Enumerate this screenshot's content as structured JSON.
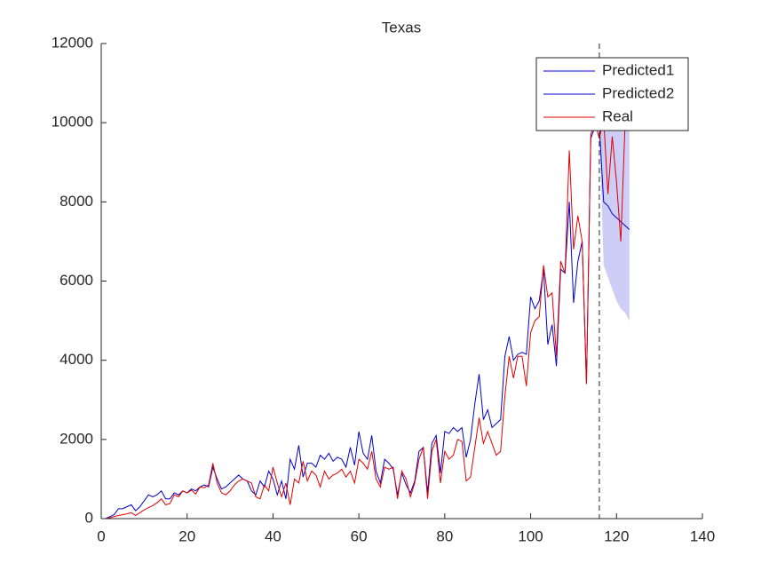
{
  "chart_data": {
    "type": "line",
    "title": "Texas",
    "xlim": [
      0,
      140
    ],
    "xticks": [
      0,
      20,
      40,
      60,
      80,
      100,
      120,
      140
    ],
    "ylim": [
      0,
      12000
    ],
    "yticks": [
      0,
      2000,
      4000,
      6000,
      8000,
      10000,
      12000
    ],
    "legend": "northeast",
    "vline": 116,
    "band": {
      "color": "#c8c8f5",
      "x": [
        116,
        117,
        118,
        119,
        120,
        121,
        122,
        123
      ],
      "lower": [
        9900,
        6400,
        6100,
        5800,
        5500,
        5300,
        5200,
        5000
      ],
      "upper": [
        9900,
        10300,
        10500,
        10700,
        10900,
        11100,
        11300,
        11500
      ]
    },
    "series": [
      {
        "name": "Predicted1",
        "color": "#0000cc",
        "x": [
          1,
          2,
          3,
          4,
          5,
          6,
          7,
          8,
          9,
          10,
          11,
          12,
          13,
          14,
          15,
          16,
          17,
          18,
          19,
          20,
          21,
          22,
          23,
          24,
          25,
          26,
          27,
          28,
          29,
          30,
          31,
          32,
          33,
          34,
          35,
          36,
          37,
          38,
          39,
          40,
          41,
          42,
          43,
          44,
          45,
          46,
          47,
          48,
          49,
          50,
          51,
          52,
          53,
          54,
          55,
          56,
          57,
          58,
          59,
          60,
          61,
          62,
          63,
          64,
          65,
          66,
          67,
          68,
          69,
          70,
          71,
          72,
          73,
          74,
          75,
          76,
          77,
          78,
          79,
          80,
          81,
          82,
          83,
          84,
          85,
          86,
          87,
          88,
          89,
          90,
          91,
          92,
          93,
          94,
          95,
          96,
          97,
          98,
          99,
          100,
          101,
          102,
          103,
          104,
          105,
          106,
          107,
          108,
          109,
          110,
          111,
          112,
          113,
          114,
          115,
          116
        ],
        "values": [
          0,
          50,
          100,
          250,
          250,
          300,
          350,
          200,
          300,
          450,
          600,
          550,
          600,
          700,
          500,
          500,
          650,
          600,
          700,
          650,
          750,
          700,
          800,
          850,
          800,
          1300,
          1000,
          750,
          800,
          900,
          1000,
          1100,
          1000,
          950,
          700,
          600,
          950,
          800,
          1200,
          1000,
          600,
          950,
          500,
          1500,
          1250,
          1850,
          1050,
          1400,
          1400,
          1300,
          1600,
          1500,
          1650,
          1450,
          1550,
          1500,
          1300,
          1800,
          1350,
          2200,
          1650,
          1500,
          2100,
          1200,
          900,
          1500,
          1400,
          1250,
          600,
          1150,
          850,
          650,
          950,
          1700,
          1800,
          650,
          1900,
          2100,
          1150,
          2200,
          2150,
          2300,
          2200,
          2300,
          1550,
          2000,
          2900,
          3650,
          2500,
          2750,
          2300,
          2400,
          2500,
          4100,
          4600,
          4000,
          4150,
          4200,
          4150,
          5600,
          5300,
          5500,
          6300,
          4400,
          4900,
          3850,
          6300,
          6200,
          8000,
          5450,
          6500,
          7000,
          3400,
          9600,
          9900,
          9900
        ]
      },
      {
        "name": "Predicted2",
        "color": "#0000cc",
        "x": [
          116,
          117,
          118,
          119,
          120,
          121,
          122,
          123
        ],
        "values": [
          9900,
          8000,
          7900,
          7700,
          7600,
          7500,
          7400,
          7300
        ]
      },
      {
        "name": "Real",
        "color": "#e00000",
        "x": [
          1,
          2,
          3,
          4,
          5,
          6,
          7,
          8,
          9,
          10,
          11,
          12,
          13,
          14,
          15,
          16,
          17,
          18,
          19,
          20,
          21,
          22,
          23,
          24,
          25,
          26,
          27,
          28,
          29,
          30,
          31,
          32,
          33,
          34,
          35,
          36,
          37,
          38,
          39,
          40,
          41,
          42,
          43,
          44,
          45,
          46,
          47,
          48,
          49,
          50,
          51,
          52,
          53,
          54,
          55,
          56,
          57,
          58,
          59,
          60,
          61,
          62,
          63,
          64,
          65,
          66,
          67,
          68,
          69,
          70,
          71,
          72,
          73,
          74,
          75,
          76,
          77,
          78,
          79,
          80,
          81,
          82,
          83,
          84,
          85,
          86,
          87,
          88,
          89,
          90,
          91,
          92,
          93,
          94,
          95,
          96,
          97,
          98,
          99,
          100,
          101,
          102,
          103,
          104,
          105,
          106,
          107,
          108,
          109,
          110,
          111,
          112,
          113,
          114,
          115,
          116,
          117,
          118,
          119,
          120,
          121,
          122
        ],
        "values": [
          0,
          20,
          50,
          80,
          100,
          120,
          150,
          80,
          150,
          220,
          280,
          330,
          400,
          500,
          350,
          380,
          600,
          550,
          700,
          650,
          720,
          620,
          800,
          780,
          850,
          1400,
          900,
          650,
          600,
          700,
          850,
          950,
          1000,
          950,
          900,
          550,
          500,
          850,
          700,
          1300,
          900,
          550,
          900,
          350,
          1000,
          900,
          1450,
          950,
          1200,
          1100,
          800,
          1200,
          1000,
          1100,
          1150,
          1250,
          1050,
          1200,
          900,
          1500,
          1400,
          1250,
          1700,
          1000,
          800,
          1300,
          1250,
          1300,
          500,
          1200,
          1000,
          550,
          900,
          1500,
          1800,
          500,
          1700,
          2000,
          900,
          1700,
          1500,
          1600,
          2000,
          1950,
          950,
          1050,
          1800,
          2550,
          1900,
          2200,
          1900,
          1600,
          1700,
          3100,
          4100,
          3550,
          4100,
          4100,
          3350,
          4700,
          5000,
          5100,
          6400,
          5600,
          5700,
          4100,
          6500,
          6200,
          9300,
          6800,
          7650,
          7000,
          3400,
          9700,
          10000,
          9600,
          10100,
          8200,
          9650,
          8500,
          7000,
          10000
        ]
      }
    ]
  }
}
